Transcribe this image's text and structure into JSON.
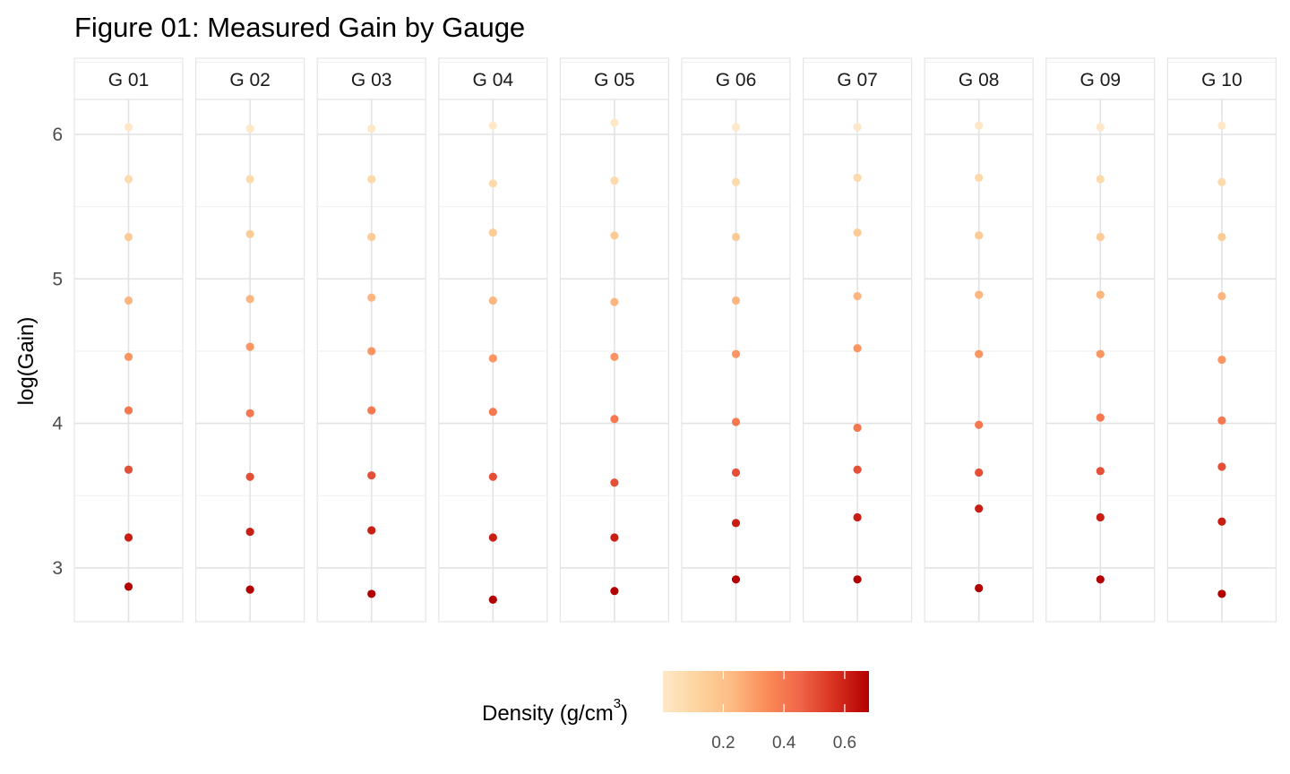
{
  "chart_data": {
    "type": "scatter",
    "title": "Figure 01: Measured Gain by Gauge",
    "ylabel": "log(Gain)",
    "xlabel": "",
    "ylim": [
      2.62,
      6.53
    ],
    "y_ticks": [
      3,
      4,
      5,
      6
    ],
    "grid": true,
    "facets": [
      "G 01",
      "G 02",
      "G 03",
      "G 04",
      "G 05",
      "G 06",
      "G 07",
      "G 08",
      "G 09",
      "G 10"
    ],
    "density_levels": [
      0.001,
      0.08,
      0.15,
      0.24,
      0.32,
      0.4,
      0.5,
      0.61,
      0.68
    ],
    "series": [
      {
        "gauge": "G 01",
        "log_gain": [
          6.05,
          5.69,
          5.29,
          4.85,
          4.46,
          4.09,
          3.68,
          3.21,
          2.87
        ]
      },
      {
        "gauge": "G 02",
        "log_gain": [
          6.04,
          5.69,
          5.31,
          4.86,
          4.53,
          4.07,
          3.63,
          3.25,
          2.85
        ]
      },
      {
        "gauge": "G 03",
        "log_gain": [
          6.04,
          5.69,
          5.29,
          4.87,
          4.5,
          4.09,
          3.64,
          3.26,
          2.82
        ]
      },
      {
        "gauge": "G 04",
        "log_gain": [
          6.06,
          5.66,
          5.32,
          4.85,
          4.45,
          4.08,
          3.63,
          3.21,
          2.78
        ]
      },
      {
        "gauge": "G 05",
        "log_gain": [
          6.08,
          5.68,
          5.3,
          4.84,
          4.46,
          4.03,
          3.59,
          3.21,
          2.84
        ]
      },
      {
        "gauge": "G 06",
        "log_gain": [
          6.05,
          5.67,
          5.29,
          4.85,
          4.48,
          4.01,
          3.66,
          3.31,
          2.92
        ]
      },
      {
        "gauge": "G 07",
        "log_gain": [
          6.05,
          5.7,
          5.32,
          4.88,
          4.52,
          3.97,
          3.68,
          3.35,
          2.92
        ]
      },
      {
        "gauge": "G 08",
        "log_gain": [
          6.06,
          5.7,
          5.3,
          4.89,
          4.48,
          3.99,
          3.66,
          3.41,
          2.86
        ]
      },
      {
        "gauge": "G 09",
        "log_gain": [
          6.05,
          5.69,
          5.29,
          4.89,
          4.48,
          4.04,
          3.67,
          3.35,
          2.92
        ]
      },
      {
        "gauge": "G 10",
        "log_gain": [
          6.06,
          5.67,
          5.29,
          4.88,
          4.44,
          4.02,
          3.7,
          3.32,
          2.82
        ]
      }
    ],
    "legend": {
      "position": "bottom",
      "title_prefix": "Density (g/cm",
      "title_superscript": "3",
      "title_suffix": ")",
      "range": [
        0.001,
        0.68
      ],
      "ticks": [
        0.2,
        0.4,
        0.6
      ],
      "tick_labels": [
        "0.2",
        "0.4",
        "0.6"
      ]
    },
    "colorscale": [
      "#fee8c8",
      "#fdd49e",
      "#fdbb84",
      "#fc8d59",
      "#ef6548",
      "#d7301f",
      "#b30000"
    ]
  }
}
